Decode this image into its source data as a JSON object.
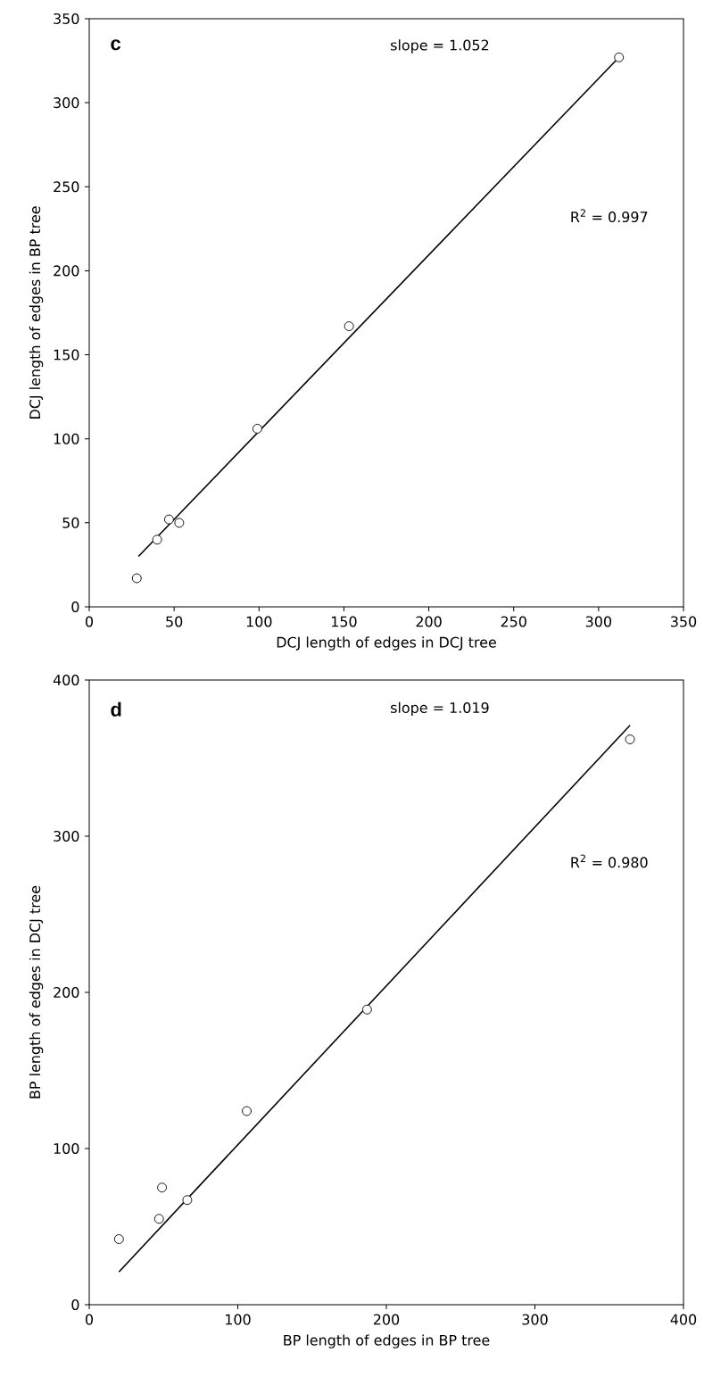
{
  "chart_data": [
    {
      "type": "scatter",
      "xlabel": "DCJ length of edges in DCJ tree",
      "ylabel": "DCJ length of edges in BP tree",
      "xlim": [
        0,
        350
      ],
      "ylim": [
        0,
        350
      ],
      "xticks": [
        0,
        50,
        100,
        150,
        200,
        250,
        300,
        350
      ],
      "yticks": [
        0,
        50,
        100,
        150,
        200,
        250,
        300,
        350
      ],
      "grid": false,
      "marker": "circle",
      "annotations": [
        "c",
        "slope = 1.052",
        "R$^{2}$ = 0.997"
      ],
      "series": [
        {
          "color": "#000000",
          "x": [
            28,
            40,
            47,
            53,
            99,
            153,
            312
          ],
          "values": [
            17,
            40,
            52,
            50,
            106,
            167,
            327
          ]
        },
        {
          "type": "line",
          "color": "#000000",
          "marker": "none",
          "line_style": "solid",
          "x": [
            29,
            312
          ],
          "values": [
            30,
            327
          ]
        }
      ]
    },
    {
      "type": "scatter",
      "xlabel": "BP length of edges in BP tree",
      "ylabel": "BP length of edges in DCJ tree",
      "xlim": [
        0,
        400
      ],
      "ylim": [
        0,
        400
      ],
      "xticks": [
        0,
        100,
        200,
        300,
        400
      ],
      "yticks": [
        0,
        100,
        200,
        300,
        400
      ],
      "grid": false,
      "marker": "circle",
      "annotations": [
        "d",
        "slope = 1.019",
        "R$^{2}$ = 0.980"
      ],
      "series": [
        {
          "color": "#000000",
          "x": [
            20,
            47,
            49,
            66,
            106,
            187,
            364
          ],
          "values": [
            42,
            55,
            75,
            67,
            124,
            189,
            362
          ]
        },
        {
          "type": "line",
          "color": "#000000",
          "marker": "none",
          "line_style": "solid",
          "x": [
            20,
            364
          ],
          "values": [
            21,
            371
          ]
        }
      ]
    }
  ]
}
